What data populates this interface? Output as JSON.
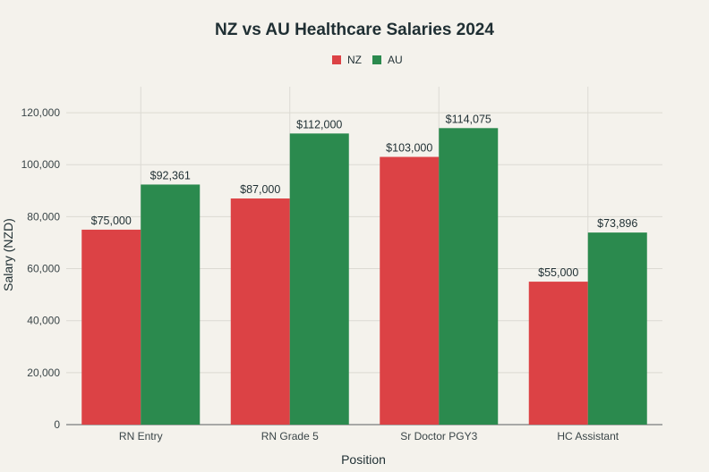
{
  "chart_data": {
    "type": "bar",
    "title": "NZ vs AU Healthcare Salaries 2024",
    "xlabel": "Position",
    "ylabel": "Salary (NZD)",
    "categories": [
      "RN Entry",
      "RN Grade 5",
      "Sr Doctor PGY3",
      "HC Assistant"
    ],
    "series": [
      {
        "name": "NZ",
        "color": "#dc4245",
        "values": [
          75000,
          87000,
          103000,
          55000
        ],
        "labels": [
          "$75,000",
          "$87,000",
          "$103,000",
          "$55,000"
        ]
      },
      {
        "name": "AU",
        "color": "#2b8a4e",
        "values": [
          92361,
          112000,
          114075,
          73896
        ],
        "labels": [
          "$92,361",
          "$112,000",
          "$114,075",
          "$73,896"
        ]
      }
    ],
    "ylim": [
      0,
      130000
    ],
    "yticks": [
      0,
      20000,
      40000,
      60000,
      80000,
      100000,
      120000
    ],
    "ytick_labels": [
      "0",
      "20,000",
      "40,000",
      "60,000",
      "80,000",
      "100,000",
      "120,000"
    ],
    "grid": true,
    "legend_position": "top-center"
  }
}
